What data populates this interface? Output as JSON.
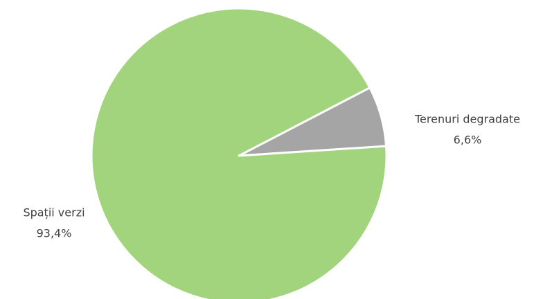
{
  "chart_data": {
    "type": "pie",
    "categories": [
      "Terenuri degradate",
      "Spații verzi"
    ],
    "values": [
      6.6,
      93.4
    ],
    "value_labels": [
      "6,6%",
      "93,4%"
    ],
    "colors": [
      "#a5a5a5",
      "#a2d47e"
    ]
  }
}
